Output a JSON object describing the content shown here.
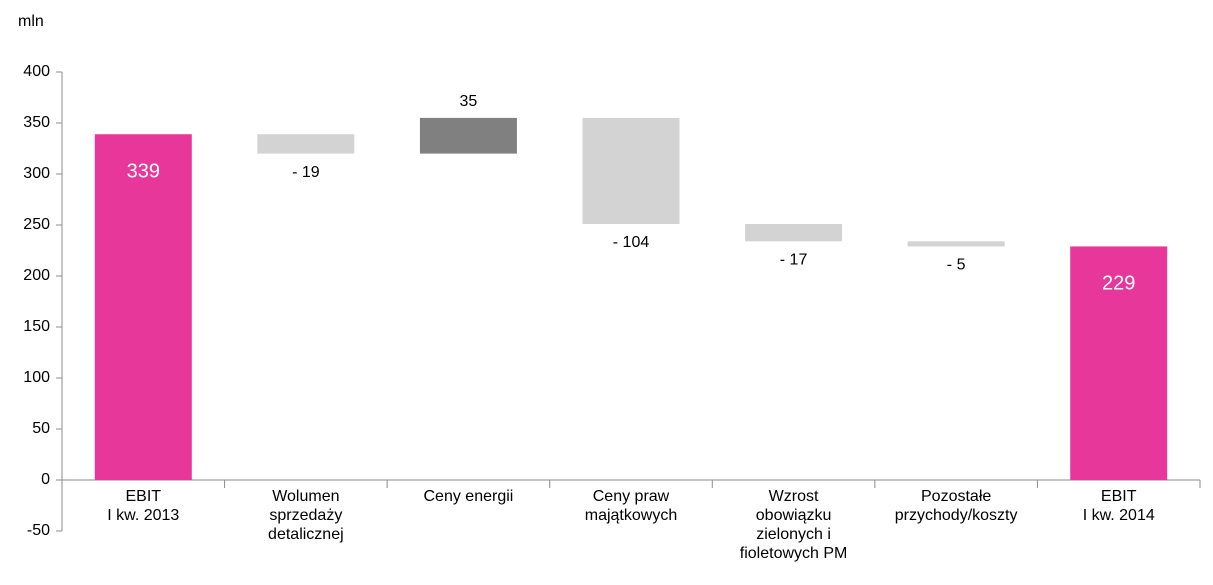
{
  "chart_data": {
    "type": "waterfall",
    "y_label": "mln",
    "categories": [
      [
        "EBIT",
        "I kw. 2013"
      ],
      [
        "Wolumen",
        "sprzedaży",
        "detalicznej"
      ],
      [
        "Ceny energii"
      ],
      [
        "Ceny praw",
        "majątkowych"
      ],
      [
        "Wzrost",
        "obowiązku",
        "zielonych i",
        "fioletowych PM"
      ],
      [
        "Pozostałe",
        "przychody/koszty"
      ],
      [
        "EBIT",
        "I kw. 2014"
      ]
    ],
    "values": [
      339,
      -19,
      35,
      -104,
      -17,
      -5,
      229
    ],
    "value_labels": [
      "339",
      "- 19",
      "35",
      "- 104",
      "- 17",
      "- 5",
      "229"
    ],
    "measure": [
      "total",
      "relative",
      "relative",
      "relative",
      "relative",
      "relative",
      "total"
    ],
    "colors": [
      "#e8379b",
      "#d3d3d3",
      "#808080",
      "#d3d3d3",
      "#d3d3d3",
      "#d3d3d3",
      "#e8379b"
    ],
    "ylim": [
      -50,
      400
    ],
    "yticks": [
      -50,
      0,
      50,
      100,
      150,
      200,
      250,
      300,
      350,
      400
    ]
  }
}
